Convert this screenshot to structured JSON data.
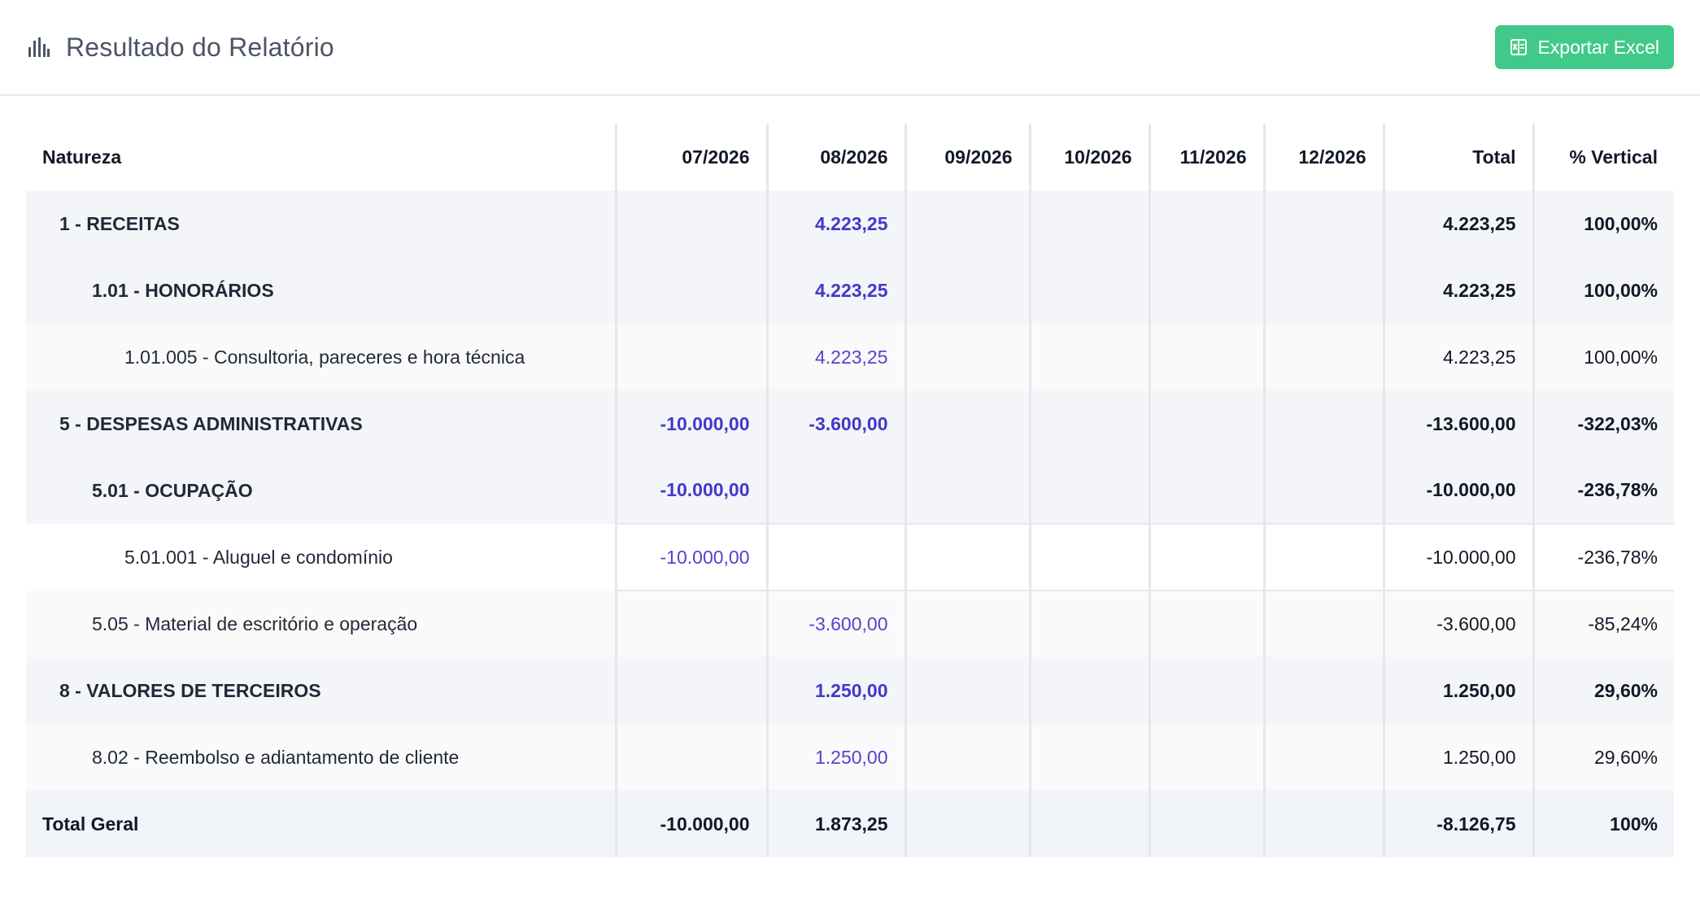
{
  "header": {
    "title": "Resultado do Relatório",
    "icon": "bar-chart-icon",
    "export_label": "Exportar Excel",
    "export_icon": "excel-icon",
    "accent": "#41c98a"
  },
  "table": {
    "columns": [
      "Natureza",
      "07/2026",
      "08/2026",
      "09/2026",
      "10/2026",
      "11/2026",
      "12/2026",
      "Total",
      "% Vertical"
    ],
    "rows": [
      {
        "label": "1 - RECEITAS",
        "c07": "",
        "c08": "4.223,25",
        "total": "4.223,25",
        "pct": "100,00%"
      },
      {
        "label": "1.01 - HONORÁRIOS",
        "c07": "",
        "c08": "4.223,25",
        "total": "4.223,25",
        "pct": "100,00%"
      },
      {
        "label": "1.01.005 - Consultoria, pareceres e hora técnica",
        "c07": "",
        "c08": "4.223,25",
        "total": "4.223,25",
        "pct": "100,00%"
      },
      {
        "label": "5 - DESPESAS ADMINISTRATIVAS",
        "c07": "-10.000,00",
        "c08": "-3.600,00",
        "total": "-13.600,00",
        "pct": "-322,03%"
      },
      {
        "label": "5.01 - OCUPAÇÃO",
        "c07": "-10.000,00",
        "c08": "",
        "total": "-10.000,00",
        "pct": "-236,78%"
      },
      {
        "label": "5.01.001 - Aluguel e condomínio",
        "c07": "-10.000,00",
        "c08": "",
        "total": "-10.000,00",
        "pct": "-236,78%"
      },
      {
        "label": "5.05 - Material de escritório e operação",
        "c07": "",
        "c08": "-3.600,00",
        "total": "-3.600,00",
        "pct": "-85,24%"
      },
      {
        "label": "8 - VALORES DE TERCEIROS",
        "c07": "",
        "c08": "1.250,00",
        "total": "1.250,00",
        "pct": "29,60%"
      },
      {
        "label": "8.02 - Reembolso e adiantamento de cliente",
        "c07": "",
        "c08": "1.250,00",
        "total": "1.250,00",
        "pct": "29,60%"
      }
    ],
    "total_row": {
      "label": "Total Geral",
      "c07": "-10.000,00",
      "c08": "1.873,25",
      "total": "-8.126,75",
      "pct": "100%"
    }
  },
  "colors": {
    "value_purple": "#4338ca",
    "border": "#e5e7eb",
    "group_bg": "#f4f5f9"
  }
}
